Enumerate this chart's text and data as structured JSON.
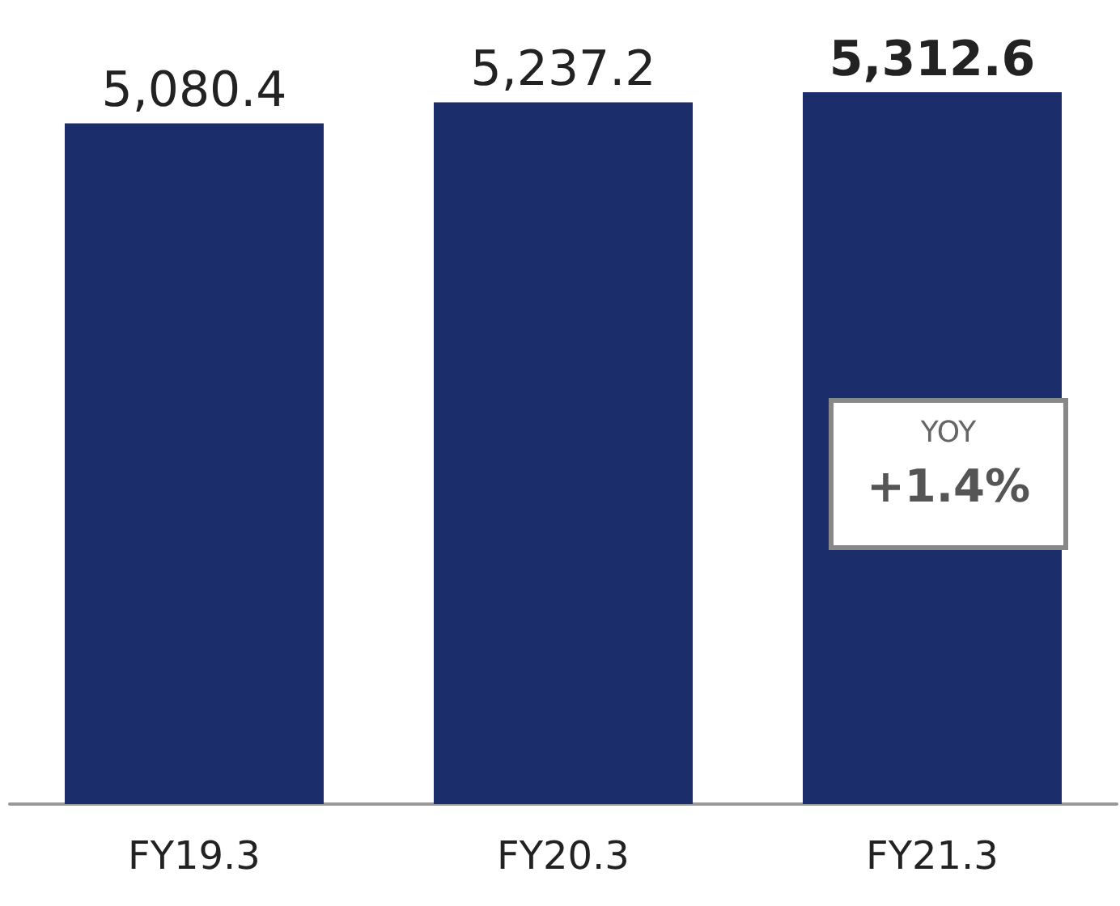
{
  "chart_data": {
    "type": "bar",
    "categories": [
      "FY19.3",
      "FY20.3",
      "FY21.3"
    ],
    "values": [
      5080.4,
      5237.2,
      5312.6
    ],
    "color": "#1b2d6b",
    "value_labels": [
      "5,080.4",
      "5,237.2",
      "5,312.6"
    ],
    "annotations": [
      "YOY",
      "+1.4%"
    ]
  }
}
